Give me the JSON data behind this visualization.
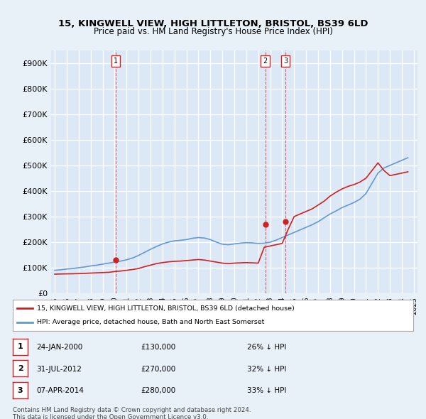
{
  "title": "15, KINGWELL VIEW, HIGH LITTLETON, BRISTOL, BS39 6LD",
  "subtitle": "Price paid vs. HM Land Registry's House Price Index (HPI)",
  "background_color": "#e8f0f8",
  "plot_background": "#dce8f5",
  "grid_color": "#ffffff",
  "ylabel": "",
  "xlabel": "",
  "ylim": [
    0,
    950000
  ],
  "yticks": [
    0,
    100000,
    200000,
    300000,
    400000,
    500000,
    600000,
    700000,
    800000,
    900000
  ],
  "ytick_labels": [
    "£0",
    "£100K",
    "£200K",
    "£300K",
    "£400K",
    "£500K",
    "£600K",
    "£700K",
    "£800K",
    "£900K"
  ],
  "sale_dates": [
    "2000-01-24",
    "2012-07-31",
    "2014-04-07"
  ],
  "sale_prices": [
    130000,
    270000,
    280000
  ],
  "sale_labels": [
    "1",
    "2",
    "3"
  ],
  "sale_hpi_pct": [
    "26% ↓ HPI",
    "32% ↓ HPI",
    "33% ↓ HPI"
  ],
  "sale_date_labels": [
    "24-JAN-2000",
    "31-JUL-2012",
    "07-APR-2014"
  ],
  "sale_price_labels": [
    "£130,000",
    "£270,000",
    "£280,000"
  ],
  "hpi_color": "#6699cc",
  "price_color": "#cc2222",
  "vline_color": "#cc2222",
  "legend_house_label": "15, KINGWELL VIEW, HIGH LITTLETON, BRISTOL, BS39 6LD (detached house)",
  "legend_hpi_label": "HPI: Average price, detached house, Bath and North East Somerset",
  "footer": "Contains HM Land Registry data © Crown copyright and database right 2024.\nThis data is licensed under the Open Government Licence v3.0.",
  "hpi_years": [
    1995,
    1995.5,
    1996,
    1996.5,
    1997,
    1997.5,
    1998,
    1998.5,
    1999,
    1999.5,
    2000,
    2000.5,
    2001,
    2001.5,
    2002,
    2002.5,
    2003,
    2003.5,
    2004,
    2004.5,
    2005,
    2005.5,
    2006,
    2006.5,
    2007,
    2007.5,
    2008,
    2008.5,
    2009,
    2009.5,
    2010,
    2010.5,
    2011,
    2011.5,
    2012,
    2012.5,
    2013,
    2013.5,
    2014,
    2014.5,
    2015,
    2015.5,
    2016,
    2016.5,
    2017,
    2017.5,
    2018,
    2018.5,
    2019,
    2019.5,
    2020,
    2020.5,
    2021,
    2021.5,
    2022,
    2022.5,
    2023,
    2023.5,
    2024,
    2024.5
  ],
  "hpi_values": [
    90000,
    92000,
    95000,
    97000,
    100000,
    103000,
    107000,
    110000,
    114000,
    118000,
    122000,
    126000,
    131000,
    138000,
    148000,
    160000,
    172000,
    183000,
    193000,
    200000,
    205000,
    207000,
    210000,
    215000,
    218000,
    216000,
    210000,
    200000,
    192000,
    190000,
    193000,
    196000,
    198000,
    197000,
    195000,
    196000,
    200000,
    208000,
    218000,
    228000,
    238000,
    248000,
    258000,
    268000,
    280000,
    295000,
    310000,
    322000,
    335000,
    345000,
    355000,
    368000,
    390000,
    430000,
    470000,
    490000,
    500000,
    510000,
    520000,
    530000
  ],
  "price_years": [
    1995,
    1995.5,
    1996,
    1996.5,
    1997,
    1997.5,
    1998,
    1998.5,
    1999,
    1999.5,
    2000,
    2000.5,
    2001,
    2001.5,
    2002,
    2002.5,
    2003,
    2003.5,
    2004,
    2004.5,
    2005,
    2005.5,
    2006,
    2006.5,
    2007,
    2007.5,
    2008,
    2008.5,
    2009,
    2009.5,
    2010,
    2010.5,
    2011,
    2011.5,
    2012,
    2012.5,
    2013,
    2013.5,
    2014,
    2014.5,
    2015,
    2015.5,
    2016,
    2016.5,
    2017,
    2017.5,
    2018,
    2018.5,
    2019,
    2019.5,
    2020,
    2020.5,
    2021,
    2021.5,
    2022,
    2022.5,
    2023,
    2023.5,
    2024,
    2024.5
  ],
  "price_values": [
    75000,
    75500,
    76000,
    76500,
    77000,
    78000,
    79000,
    80000,
    81000,
    82000,
    85000,
    87000,
    90000,
    93000,
    97000,
    104000,
    110000,
    116000,
    120000,
    123000,
    125000,
    126000,
    128000,
    130000,
    132000,
    130000,
    126000,
    122000,
    118000,
    116000,
    118000,
    119000,
    120000,
    119000,
    118000,
    180000,
    185000,
    190000,
    195000,
    250000,
    300000,
    310000,
    320000,
    330000,
    345000,
    360000,
    380000,
    395000,
    408000,
    418000,
    425000,
    435000,
    450000,
    480000,
    510000,
    480000,
    460000,
    465000,
    470000,
    475000
  ],
  "xtick_years": [
    1995,
    1996,
    1997,
    1998,
    1999,
    2000,
    2001,
    2002,
    2003,
    2004,
    2005,
    2006,
    2007,
    2008,
    2009,
    2010,
    2011,
    2012,
    2013,
    2014,
    2015,
    2016,
    2017,
    2018,
    2019,
    2020,
    2021,
    2022,
    2023,
    2024,
    2025
  ]
}
